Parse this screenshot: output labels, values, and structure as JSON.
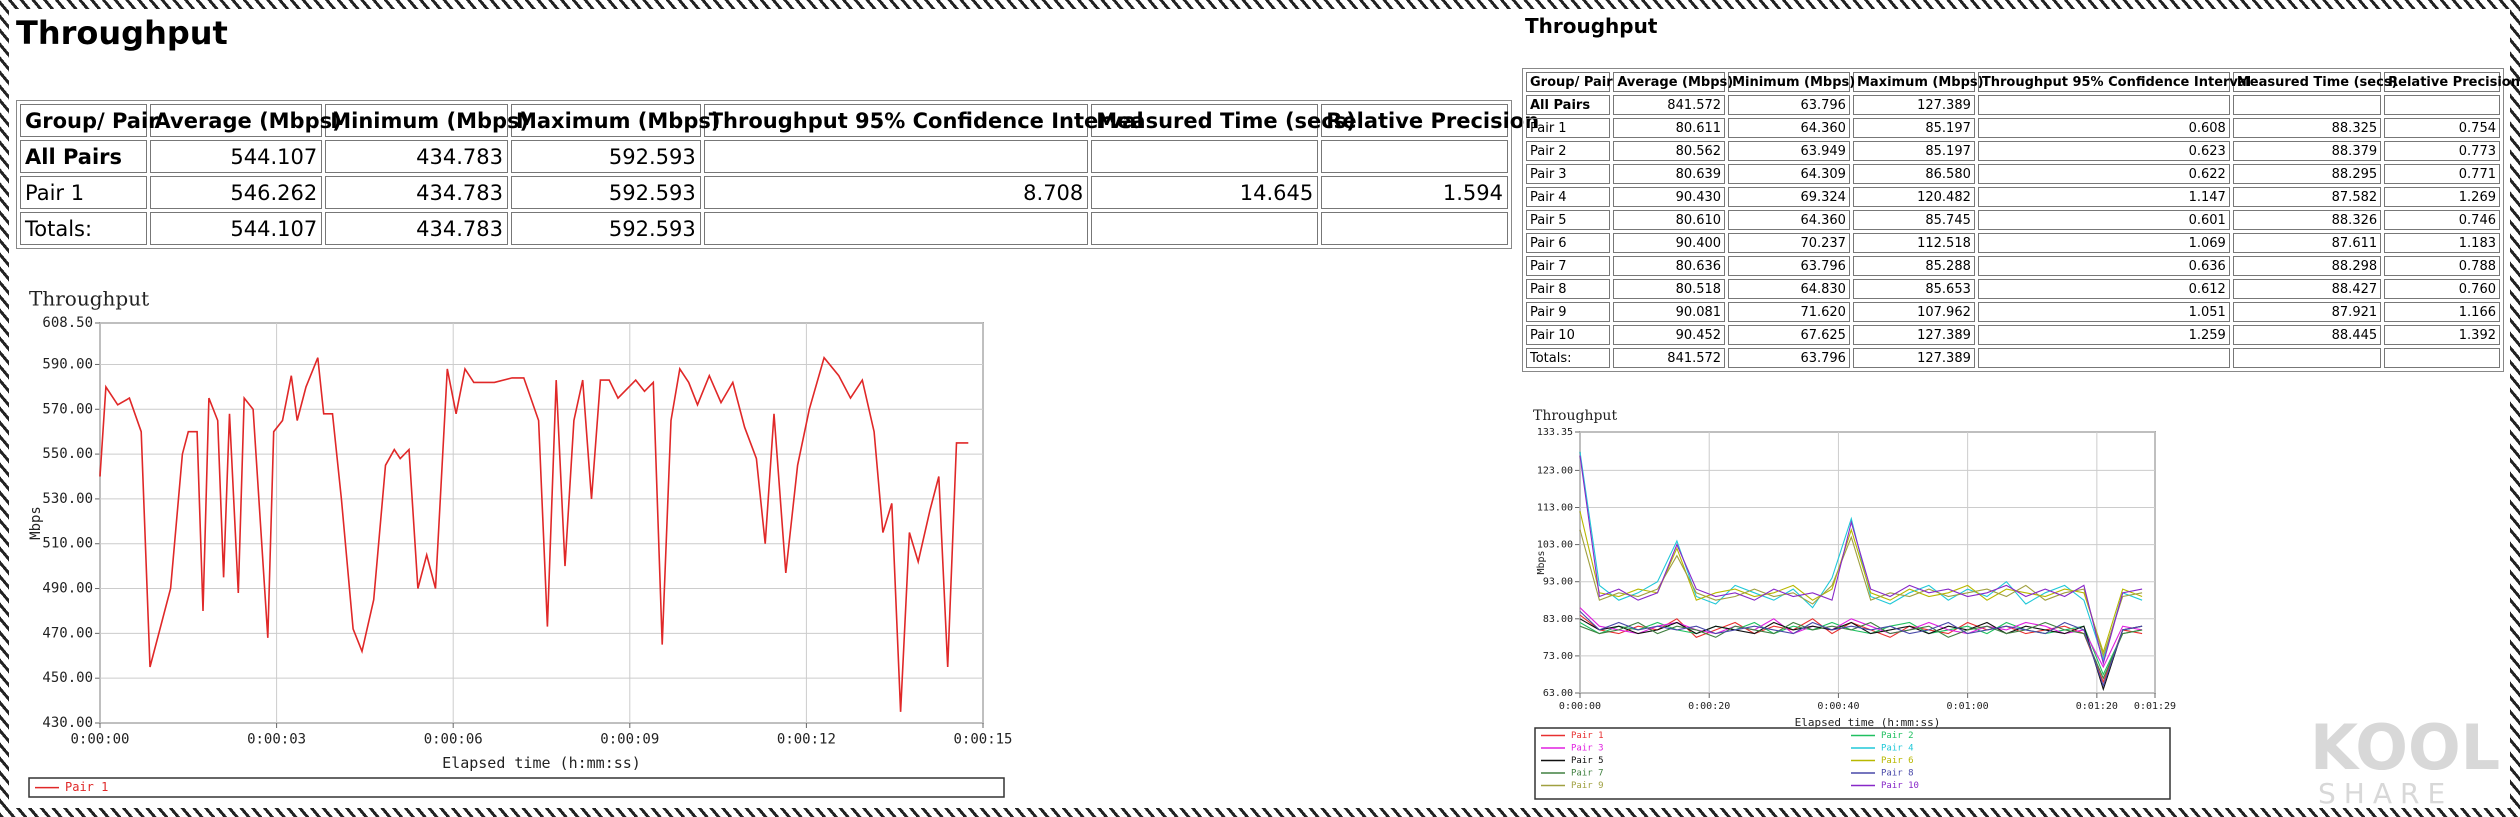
{
  "left": {
    "title": "Throughput",
    "table": {
      "header": [
        "Group/ Pair",
        "Average (Mbps)",
        "Minimum (Mbps)",
        "Maximum (Mbps)",
        "Throughput 95% Confidence Interval",
        "Measured Time (secs)",
        "Relative Precision"
      ],
      "rows": [
        [
          "All Pairs",
          "544.107",
          "434.783",
          "592.593",
          null,
          null,
          null
        ],
        [
          "Pair 1",
          "546.262",
          "434.783",
          "592.593",
          "8.708",
          "14.645",
          "1.594"
        ],
        [
          "Totals:",
          "544.107",
          "434.783",
          "592.593",
          null,
          null,
          null
        ]
      ]
    },
    "chart": {
      "type": "line",
      "title": "Throughput",
      "x_label": "Elapsed time (h:mm:ss)",
      "y_label": "Mbps",
      "xlim": [
        0,
        15
      ],
      "xticks": [
        {
          "value": 0,
          "label": "0:00:00"
        },
        {
          "value": 3,
          "label": "0:00:03"
        },
        {
          "value": 6,
          "label": "0:00:06"
        },
        {
          "value": 9,
          "label": "0:00:09"
        },
        {
          "value": 12,
          "label": "0:00:12"
        },
        {
          "value": 15,
          "label": "0:00:15"
        }
      ],
      "ylim": [
        430,
        608.5
      ],
      "yticks": [
        {
          "value": 430,
          "label": "430.00"
        },
        {
          "value": 450,
          "label": "450.00"
        },
        {
          "value": 470,
          "label": "470.00"
        },
        {
          "value": 490,
          "label": "490.00"
        },
        {
          "value": 510,
          "label": "510.00"
        },
        {
          "value": 530,
          "label": "530.00"
        },
        {
          "value": 550,
          "label": "550.00"
        },
        {
          "value": 570,
          "label": "570.00"
        },
        {
          "value": 590,
          "label": "590.00"
        },
        {
          "value": 608.5,
          "label": "608.50"
        }
      ],
      "grid": true,
      "x": [
        0,
        0.1,
        0.3,
        0.5,
        0.7,
        0.85,
        1.2,
        1.4,
        1.5,
        1.65,
        1.75,
        1.85,
        2.0,
        2.1,
        2.2,
        2.35,
        2.45,
        2.6,
        2.85,
        2.95,
        3.1,
        3.25,
        3.35,
        3.5,
        3.7,
        3.8,
        3.95,
        4.1,
        4.3,
        4.45,
        4.65,
        4.85,
        5.0,
        5.1,
        5.25,
        5.4,
        5.55,
        5.7,
        5.9,
        6.05,
        6.2,
        6.35,
        6.7,
        7.0,
        7.2,
        7.45,
        7.6,
        7.75,
        7.9,
        8.05,
        8.2,
        8.35,
        8.5,
        8.65,
        8.8,
        9.1,
        9.25,
        9.4,
        9.55,
        9.7,
        9.85,
        10.0,
        10.15,
        10.35,
        10.55,
        10.75,
        10.95,
        11.15,
        11.3,
        11.45,
        11.65,
        11.85,
        12.05,
        12.3,
        12.55,
        12.75,
        12.95,
        13.15,
        13.3,
        13.45,
        13.6,
        13.75,
        13.9,
        14.1,
        14.25,
        14.4,
        14.55,
        14.75
      ],
      "series": [
        {
          "name": "Pair 1",
          "color": "#e02828",
          "values": [
            540,
            580,
            572,
            575,
            560,
            455,
            490,
            550,
            560,
            560,
            480,
            575,
            565,
            495,
            568,
            488,
            575,
            570,
            468,
            560,
            565,
            585,
            565,
            580,
            593,
            568,
            568,
            530,
            472,
            462,
            485,
            545,
            552,
            548,
            552,
            490,
            505,
            490,
            588,
            568,
            588,
            582,
            582,
            584,
            584,
            565,
            473,
            583,
            500,
            565,
            583,
            530,
            583,
            583,
            575,
            583,
            578,
            582,
            465,
            565,
            588,
            582,
            572,
            585,
            573,
            582,
            562,
            548,
            510,
            568,
            497,
            545,
            570,
            593,
            585,
            575,
            583,
            560,
            515,
            528,
            435,
            515,
            502,
            525,
            540,
            455,
            555,
            555
          ]
        }
      ]
    }
  },
  "right": {
    "title": "Throughput",
    "table": {
      "header": [
        "Group/ Pair",
        "Average (Mbps)",
        "Minimum (Mbps)",
        "Maximum (Mbps)",
        "Throughput 95% Confidence Interval",
        "Measured Time (secs)",
        "Relative Precision"
      ],
      "rows": [
        [
          "All Pairs",
          "841.572",
          "63.796",
          "127.389",
          null,
          null,
          null
        ],
        [
          "Pair 1",
          "80.611",
          "64.360",
          "85.197",
          "0.608",
          "88.325",
          "0.754"
        ],
        [
          "Pair 2",
          "80.562",
          "63.949",
          "85.197",
          "0.623",
          "88.379",
          "0.773"
        ],
        [
          "Pair 3",
          "80.639",
          "64.309",
          "86.580",
          "0.622",
          "88.295",
          "0.771"
        ],
        [
          "Pair 4",
          "90.430",
          "69.324",
          "120.482",
          "1.147",
          "87.582",
          "1.269"
        ],
        [
          "Pair 5",
          "80.610",
          "64.360",
          "85.745",
          "0.601",
          "88.326",
          "0.746"
        ],
        [
          "Pair 6",
          "90.400",
          "70.237",
          "112.518",
          "1.069",
          "87.611",
          "1.183"
        ],
        [
          "Pair 7",
          "80.636",
          "63.796",
          "85.288",
          "0.636",
          "88.298",
          "0.788"
        ],
        [
          "Pair 8",
          "80.518",
          "64.830",
          "85.653",
          "0.612",
          "88.427",
          "0.760"
        ],
        [
          "Pair 9",
          "90.081",
          "71.620",
          "107.962",
          "1.051",
          "87.921",
          "1.166"
        ],
        [
          "Pair 10",
          "90.452",
          "67.625",
          "127.389",
          "1.259",
          "88.445",
          "1.392"
        ],
        [
          "Totals:",
          "841.572",
          "63.796",
          "127.389",
          null,
          null,
          null
        ]
      ]
    },
    "chart": {
      "type": "line",
      "title": "Throughput",
      "x_label": "Elapsed time (h:mm:ss)",
      "y_label": "Mbps",
      "xlim": [
        0,
        89
      ],
      "xticks": [
        {
          "value": 0,
          "label": "0:00:00"
        },
        {
          "value": 20,
          "label": "0:00:20"
        },
        {
          "value": 40,
          "label": "0:00:40"
        },
        {
          "value": 60,
          "label": "0:01:00"
        },
        {
          "value": 80,
          "label": "0:01:20"
        },
        {
          "value": 89,
          "label": "0:01:29"
        }
      ],
      "ylim": [
        63,
        133.35
      ],
      "yticks": [
        {
          "value": 63,
          "label": "63.00"
        },
        {
          "value": 73,
          "label": "73.00"
        },
        {
          "value": 83,
          "label": "83.00"
        },
        {
          "value": 93,
          "label": "93.00"
        },
        {
          "value": 103,
          "label": "103.00"
        },
        {
          "value": 113,
          "label": "113.00"
        },
        {
          "value": 123,
          "label": "123.00"
        },
        {
          "value": 133.35,
          "label": "133.35"
        }
      ],
      "grid": true,
      "x": [
        0,
        3,
        6,
        9,
        12,
        15,
        18,
        21,
        24,
        27,
        30,
        33,
        36,
        39,
        42,
        45,
        48,
        51,
        54,
        57,
        60,
        63,
        66,
        69,
        72,
        75,
        78,
        81,
        84,
        87
      ],
      "series": [
        {
          "name": "Pair 1",
          "color": "#e83030",
          "values": [
            84,
            80,
            79,
            81,
            80,
            83,
            78,
            80,
            82,
            79,
            81,
            80,
            83,
            79,
            82,
            80,
            78,
            81,
            80,
            79,
            82,
            80,
            81,
            79,
            80,
            81,
            79,
            66,
            80,
            79
          ]
        },
        {
          "name": "Pair 2",
          "color": "#20c060",
          "values": [
            82,
            79,
            81,
            80,
            82,
            80,
            79,
            81,
            80,
            82,
            79,
            81,
            80,
            82,
            80,
            79,
            81,
            82,
            79,
            80,
            81,
            79,
            82,
            80,
            79,
            80,
            81,
            68,
            79,
            80
          ]
        },
        {
          "name": "Pair 3",
          "color": "#e020e0",
          "values": [
            86,
            81,
            80,
            79,
            81,
            82,
            80,
            79,
            81,
            80,
            83,
            79,
            81,
            80,
            83,
            81,
            79,
            80,
            82,
            80,
            79,
            81,
            80,
            82,
            81,
            79,
            80,
            70,
            81,
            80
          ]
        },
        {
          "name": "Pair 4",
          "color": "#20c8d8",
          "values": [
            128,
            92,
            88,
            90,
            93,
            104,
            89,
            87,
            92,
            90,
            88,
            91,
            86,
            94,
            110,
            89,
            87,
            90,
            92,
            88,
            91,
            89,
            93,
            87,
            90,
            92,
            88,
            72,
            90,
            88
          ]
        },
        {
          "name": "Pair 5",
          "color": "#101010",
          "values": [
            83,
            80,
            81,
            79,
            80,
            82,
            79,
            81,
            80,
            79,
            82,
            80,
            81,
            80,
            82,
            79,
            80,
            81,
            79,
            81,
            80,
            82,
            79,
            81,
            80,
            79,
            81,
            64,
            80,
            81
          ]
        },
        {
          "name": "Pair 6",
          "color": "#b8b800",
          "values": [
            112,
            90,
            89,
            91,
            90,
            102,
            88,
            90,
            91,
            89,
            90,
            92,
            88,
            91,
            107,
            90,
            88,
            91,
            89,
            90,
            92,
            88,
            91,
            90,
            89,
            91,
            90,
            74,
            91,
            89
          ]
        },
        {
          "name": "Pair 7",
          "color": "#408040",
          "values": [
            81,
            79,
            80,
            82,
            79,
            81,
            80,
            78,
            81,
            80,
            79,
            82,
            80,
            81,
            80,
            82,
            79,
            80,
            81,
            78,
            80,
            81,
            79,
            80,
            82,
            80,
            79,
            67,
            79,
            80
          ]
        },
        {
          "name": "Pair 8",
          "color": "#4848a8",
          "values": [
            85,
            80,
            82,
            80,
            81,
            80,
            81,
            79,
            80,
            81,
            80,
            79,
            82,
            80,
            81,
            80,
            81,
            79,
            80,
            82,
            79,
            80,
            81,
            80,
            79,
            82,
            80,
            65,
            80,
            81
          ]
        },
        {
          "name": "Pair 9",
          "color": "#a0a040",
          "values": [
            107,
            88,
            90,
            89,
            91,
            100,
            90,
            88,
            89,
            91,
            89,
            90,
            87,
            92,
            105,
            88,
            90,
            89,
            91,
            89,
            90,
            91,
            89,
            92,
            88,
            90,
            91,
            73,
            89,
            90
          ]
        },
        {
          "name": "Pair 10",
          "color": "#8828c8",
          "values": [
            127,
            89,
            91,
            88,
            90,
            103,
            91,
            89,
            90,
            88,
            91,
            89,
            90,
            88,
            109,
            91,
            89,
            92,
            90,
            91,
            89,
            90,
            92,
            89,
            91,
            89,
            92,
            71,
            90,
            91
          ]
        }
      ]
    }
  },
  "watermark": [
    "KOOL",
    "SHARE"
  ]
}
